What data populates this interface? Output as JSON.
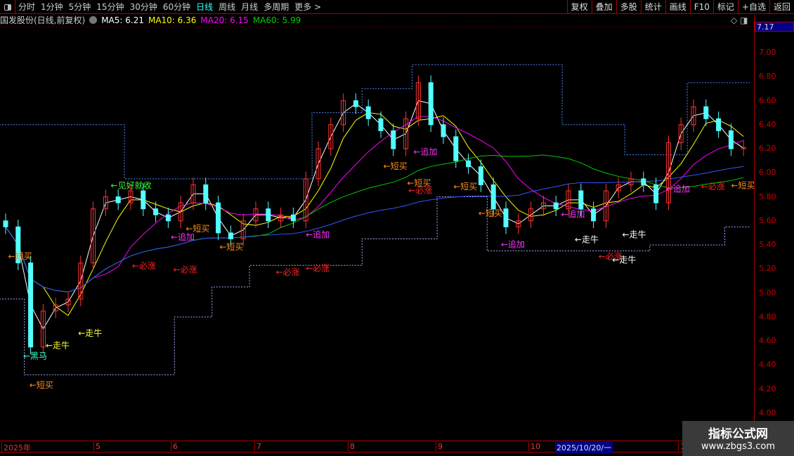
{
  "toolbar": {
    "periods": [
      "分时",
      "1分钟",
      "5分钟",
      "15分钟",
      "30分钟",
      "60分钟",
      "日线",
      "周线",
      "月线",
      "多周期",
      "更多 >"
    ],
    "active": "日线",
    "buttons": [
      "复权",
      "叠加",
      "多股",
      "统计",
      "画线",
      "F10",
      "标记",
      "+自选",
      "返回"
    ]
  },
  "info": {
    "title": "国发股份(日线,前复权)",
    "ma5": "MA5: 6.21",
    "ma10": "MA10: 6.36",
    "ma20": "MA20: 6.15",
    "ma60": "MA60: 5.99"
  },
  "current_price": "7.17",
  "dates": {
    "labels": [
      "2025年",
      "5",
      "6",
      "7",
      "8",
      "9",
      "10",
      "1"
    ],
    "cursor": "2025/10/20/一"
  },
  "watermark": {
    "line1": "指标公式网",
    "line2": "www.zbgs3.com"
  },
  "colors": {
    "up": "#ff3333",
    "down": "#54ffff",
    "ma5": "#ffffff",
    "ma10": "#ffff00",
    "ma20": "#ff00ff",
    "ma60": "#00cc00",
    "ma_long": "#3355ff",
    "axis": "#aa0000"
  },
  "chart_data": {
    "type": "candlestick",
    "ylim": [
      4.0,
      7.0
    ],
    "yticks": [
      "7.00",
      "6.80",
      "6.60",
      "6.40",
      "6.20",
      "6.00",
      "5.80",
      "5.60",
      "5.40",
      "5.20",
      "5.00",
      "4.80",
      "4.60",
      "4.40",
      "4.20",
      "4.00"
    ],
    "close": [
      5.55,
      5.25,
      4.55,
      4.85,
      4.9,
      4.95,
      5.25,
      5.7,
      5.8,
      5.75,
      5.85,
      5.7,
      5.65,
      5.6,
      5.75,
      5.9,
      5.75,
      5.5,
      5.45,
      5.6,
      5.7,
      5.6,
      5.65,
      5.6,
      5.95,
      6.2,
      6.4,
      6.6,
      6.55,
      6.45,
      6.35,
      6.2,
      6.45,
      6.75,
      6.4,
      6.3,
      6.1,
      6.05,
      5.9,
      5.7,
      5.55,
      5.6,
      5.7,
      5.75,
      5.7,
      5.85,
      5.7,
      5.6,
      5.85,
      5.9,
      5.95,
      5.9,
      5.75,
      6.25,
      6.4,
      6.55,
      6.45,
      6.35,
      6.2,
      6.21
    ],
    "upper_band": [
      6.4,
      6.4,
      6.4,
      6.4,
      6.4,
      6.4,
      6.4,
      6.4,
      6.4,
      6.4,
      5.95,
      5.95,
      5.95,
      5.95,
      5.95,
      5.95,
      5.95,
      5.95,
      5.95,
      5.95,
      5.95,
      5.95,
      5.95,
      5.95,
      5.95,
      6.5,
      6.5,
      6.5,
      6.5,
      6.7,
      6.7,
      6.7,
      6.7,
      6.9,
      6.9,
      6.9,
      6.9,
      6.9,
      6.9,
      6.9,
      6.9,
      6.9,
      6.9,
      6.9,
      6.9,
      6.4,
      6.4,
      6.4,
      6.4,
      6.4,
      6.15,
      6.15,
      6.15,
      6.15,
      6.15,
      6.75,
      6.75,
      6.75,
      6.75,
      6.75
    ],
    "lower_band": [
      4.95,
      4.95,
      4.32,
      4.32,
      4.32,
      4.32,
      4.32,
      4.32,
      4.32,
      4.32,
      4.32,
      4.32,
      4.32,
      4.32,
      4.8,
      4.8,
      4.8,
      5.05,
      5.05,
      5.05,
      5.23,
      5.23,
      5.23,
      5.23,
      5.23,
      5.23,
      5.23,
      5.23,
      5.23,
      5.45,
      5.45,
      5.45,
      5.45,
      5.45,
      5.45,
      5.8,
      5.8,
      5.8,
      5.8,
      5.35,
      5.35,
      5.35,
      5.35,
      5.35,
      5.35,
      5.35,
      5.35,
      5.35,
      5.35,
      5.35,
      5.35,
      5.35,
      5.4,
      5.4,
      5.4,
      5.4,
      5.4,
      5.4,
      5.55,
      5.55
    ],
    "annotations": [
      {
        "i": 0.2,
        "p": 5.31,
        "text": "←短买",
        "color": "#ff8c1a"
      },
      {
        "i": 1.4,
        "p": 4.48,
        "text": "←黑马",
        "color": "#33ffcc"
      },
      {
        "i": 3.2,
        "p": 4.57,
        "text": "←走牛",
        "color": "#ffff33"
      },
      {
        "i": 1.9,
        "p": 4.24,
        "text": "←短买",
        "color": "#ff8c1a"
      },
      {
        "i": 5.8,
        "p": 4.67,
        "text": "←走牛",
        "color": "#ffff33"
      },
      {
        "i": 10.1,
        "p": 5.23,
        "text": "←必涨",
        "color": "#ff2222"
      },
      {
        "i": 8.4,
        "p": 5.9,
        "text": "←见好就收",
        "color": "#33ff33"
      },
      {
        "i": 13.2,
        "p": 5.47,
        "text": "←追加",
        "color": "#ff33ff"
      },
      {
        "i": 14.4,
        "p": 5.54,
        "text": "←短买",
        "color": "#ff8c1a"
      },
      {
        "i": 13.4,
        "p": 5.2,
        "text": "←必涨",
        "color": "#ff2222"
      },
      {
        "i": 17.1,
        "p": 5.39,
        "text": "←短买",
        "color": "#ff8c1a"
      },
      {
        "i": 21.6,
        "p": 5.18,
        "text": "←必涨",
        "color": "#ff2222"
      },
      {
        "i": 24,
        "p": 5.21,
        "text": "←必涨",
        "color": "#ff2222"
      },
      {
        "i": 24,
        "p": 5.49,
        "text": "←追加",
        "color": "#ff33ff"
      },
      {
        "i": 30.2,
        "p": 6.06,
        "text": "←短买",
        "color": "#ff8c1a"
      },
      {
        "i": 32.6,
        "p": 6.18,
        "text": "←追加",
        "color": "#ff33ff"
      },
      {
        "i": 32.1,
        "p": 5.92,
        "text": "←短买",
        "color": "#ff8c1a"
      },
      {
        "i": 32.2,
        "p": 5.86,
        "text": "←必涨",
        "color": "#ff2222"
      },
      {
        "i": 35.8,
        "p": 5.89,
        "text": "←短买",
        "color": "#ff8c1a"
      },
      {
        "i": 37.8,
        "p": 5.67,
        "text": "←短买",
        "color": "#ff8c1a"
      },
      {
        "i": 39.6,
        "p": 5.41,
        "text": "←追加",
        "color": "#ff33ff"
      },
      {
        "i": 44.4,
        "p": 5.66,
        "text": "←追加",
        "color": "#ff33ff"
      },
      {
        "i": 45.5,
        "p": 5.45,
        "text": "←走牛",
        "color": "#ffffff"
      },
      {
        "i": 47.4,
        "p": 5.31,
        "text": "←必涨",
        "color": "#ff2222"
      },
      {
        "i": 48.5,
        "p": 5.28,
        "text": "←走牛",
        "color": "#ffffff"
      },
      {
        "i": 49.3,
        "p": 5.49,
        "text": "←走牛",
        "color": "#ffffff"
      },
      {
        "i": 52.8,
        "p": 5.87,
        "text": "←追加",
        "color": "#ff33ff"
      },
      {
        "i": 55.6,
        "p": 5.89,
        "text": "←必涨",
        "color": "#ff2222"
      },
      {
        "i": 58,
        "p": 5.9,
        "text": "←短买",
        "color": "#ff8c1a"
      }
    ]
  }
}
